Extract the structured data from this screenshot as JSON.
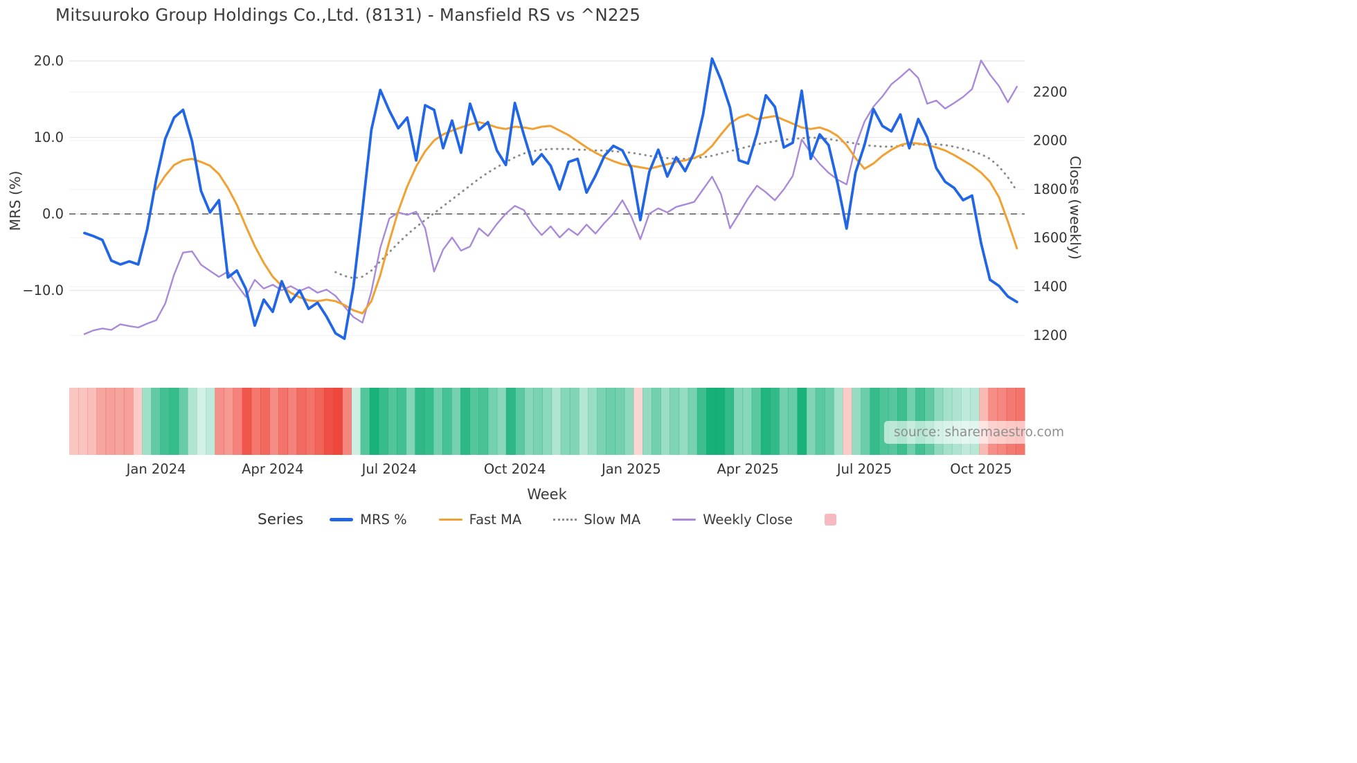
{
  "title": "Mitsuuroko Group Holdings Co.,Ltd. (8131) - Mansfield RS vs ^N225",
  "watermark": "source: sharemaestro.com",
  "legend": {
    "label": "Series",
    "items": [
      {
        "name": "MRS %",
        "color": "#2166e5",
        "style": "solid",
        "thickness": 4.5
      },
      {
        "name": "Fast MA",
        "color": "#f0a132",
        "style": "solid",
        "thickness": 3.2
      },
      {
        "name": "Slow MA",
        "color": "#8c8c8c",
        "style": "dotted",
        "thickness": 3.2
      },
      {
        "name": "Weekly Close",
        "color": "#a98ad8",
        "style": "solid",
        "thickness": 2.6
      },
      {
        "name": "",
        "color": "#f6b9bf",
        "style": "square",
        "thickness": 17
      }
    ]
  },
  "chart_data": {
    "type": "line",
    "title": "Mitsuuroko Group Holdings Co.,Ltd. (8131) - Mansfield RS vs ^N225",
    "grid": "horizontal-only",
    "legend_position": "bottom",
    "x": {
      "label": "Week",
      "tick_indices": [
        8,
        21,
        34,
        48,
        61,
        74,
        87,
        100
      ],
      "tick_labels": [
        "Jan 2024",
        "Apr 2024",
        "Jul 2024",
        "Oct 2024",
        "Jan 2025",
        "Apr 2025",
        "Jul 2025",
        "Oct 2025"
      ],
      "dates": [
        "2023-11-06",
        "2023-11-13",
        "2023-11-20",
        "2023-11-27",
        "2023-12-04",
        "2023-12-11",
        "2023-12-18",
        "2023-12-25",
        "2024-01-01",
        "2024-01-08",
        "2024-01-15",
        "2024-01-22",
        "2024-01-29",
        "2024-02-05",
        "2024-02-12",
        "2024-02-19",
        "2024-02-26",
        "2024-03-04",
        "2024-03-11",
        "2024-03-18",
        "2024-03-25",
        "2024-04-01",
        "2024-04-08",
        "2024-04-15",
        "2024-04-22",
        "2024-04-29",
        "2024-05-06",
        "2024-05-13",
        "2024-05-20",
        "2024-05-27",
        "2024-06-03",
        "2024-06-10",
        "2024-06-17",
        "2024-06-24",
        "2024-07-01",
        "2024-07-08",
        "2024-07-15",
        "2024-07-22",
        "2024-07-29",
        "2024-08-05",
        "2024-08-12",
        "2024-08-19",
        "2024-08-26",
        "2024-09-02",
        "2024-09-09",
        "2024-09-16",
        "2024-09-23",
        "2024-09-30",
        "2024-10-07",
        "2024-10-14",
        "2024-10-21",
        "2024-10-28",
        "2024-11-04",
        "2024-11-11",
        "2024-11-18",
        "2024-11-25",
        "2024-12-02",
        "2024-12-09",
        "2024-12-16",
        "2024-12-23",
        "2024-12-30",
        "2025-01-06",
        "2025-01-13",
        "2025-01-20",
        "2025-01-27",
        "2025-02-03",
        "2025-02-10",
        "2025-02-17",
        "2025-02-24",
        "2025-03-03",
        "2025-03-10",
        "2025-03-17",
        "2025-03-24",
        "2025-03-31",
        "2025-04-07",
        "2025-04-14",
        "2025-04-21",
        "2025-04-28",
        "2025-05-05",
        "2025-05-12",
        "2025-05-19",
        "2025-05-26",
        "2025-06-02",
        "2025-06-09",
        "2025-06-16",
        "2025-06-23",
        "2025-06-30",
        "2025-07-07",
        "2025-07-14",
        "2025-07-21",
        "2025-07-28",
        "2025-08-04",
        "2025-08-11",
        "2025-08-18",
        "2025-08-25",
        "2025-09-01",
        "2025-09-08",
        "2025-09-15",
        "2025-09-22",
        "2025-09-29",
        "2025-10-06",
        "2025-10-13",
        "2025-10-20",
        "2025-10-27",
        "2025-11-03"
      ]
    },
    "left_axis": {
      "label": "MRS (%)",
      "range": [
        -18.5,
        21.5
      ],
      "tick_values": [
        20,
        10,
        0,
        -10
      ],
      "tick_labels": [
        "20.0",
        "10.0",
        "0.0",
        "−10.0"
      ],
      "zero_line_dashed": true
    },
    "right_axis": {
      "label": "Close (weekly)",
      "range": [
        1150,
        2350
      ],
      "tick_values": [
        2200,
        2000,
        1800,
        1600,
        1400,
        1200
      ],
      "tick_labels": [
        "2200",
        "2000",
        "1800",
        "1600",
        "1400",
        "1200"
      ]
    },
    "series": [
      {
        "name": "MRS %",
        "axis": "left",
        "color": "#2166e5",
        "dash": "solid",
        "width": 3.8,
        "values": [
          -2.5,
          -2.9,
          -3.4,
          -6.1,
          -6.6,
          -6.2,
          -6.6,
          -2.0,
          4.5,
          9.8,
          12.6,
          13.6,
          9.5,
          3.0,
          0.2,
          1.8,
          -8.3,
          -7.4,
          -9.8,
          -14.6,
          -11.2,
          -12.8,
          -8.8,
          -11.5,
          -10.0,
          -12.4,
          -11.6,
          -13.4,
          -15.6,
          -16.3,
          -9.5,
          0.5,
          11.0,
          16.2,
          13.5,
          11.2,
          12.6,
          7.0,
          14.2,
          13.6,
          8.6,
          12.2,
          8.0,
          14.4,
          11.0,
          12.0,
          8.3,
          6.4,
          14.5,
          10.4,
          6.5,
          7.8,
          6.3,
          3.2,
          6.8,
          7.2,
          2.8,
          5.0,
          7.6,
          8.9,
          8.3,
          6.0,
          -0.8,
          5.5,
          8.4,
          4.9,
          7.4,
          5.6,
          8.0,
          13.0,
          20.3,
          17.5,
          13.9,
          7.0,
          6.6,
          10.5,
          15.5,
          14.0,
          8.7,
          9.3,
          16.1,
          7.2,
          10.4,
          9.0,
          4.0,
          -1.9,
          5.4,
          9.0,
          13.7,
          11.5,
          10.8,
          13.0,
          8.6,
          12.4,
          10.0,
          6.0,
          4.2,
          3.4,
          1.8,
          2.4,
          -3.8,
          -8.6,
          -9.4,
          -10.8,
          -11.5
        ]
      },
      {
        "name": "Fast MA",
        "axis": "left",
        "color": "#f0a132",
        "dash": "solid",
        "width": 3,
        "values": [
          null,
          null,
          null,
          null,
          null,
          null,
          null,
          null,
          3.2,
          5.0,
          6.4,
          7.0,
          7.2,
          6.8,
          6.3,
          5.2,
          3.4,
          1.2,
          -1.6,
          -4.2,
          -6.4,
          -8.2,
          -9.4,
          -10.3,
          -10.9,
          -11.3,
          -11.4,
          -11.2,
          -11.4,
          -11.9,
          -12.6,
          -13.0,
          -11.4,
          -8.0,
          -3.6,
          0.4,
          3.6,
          6.2,
          8.2,
          9.6,
          10.4,
          10.9,
          11.3,
          11.7,
          12.0,
          11.7,
          11.3,
          11.1,
          11.4,
          11.3,
          11.1,
          11.4,
          11.5,
          10.9,
          10.3,
          9.5,
          8.7,
          8.0,
          7.4,
          6.9,
          6.5,
          6.3,
          6.1,
          5.9,
          6.2,
          6.5,
          6.8,
          7.0,
          7.3,
          7.8,
          8.9,
          10.4,
          11.8,
          12.6,
          13.0,
          12.4,
          12.6,
          12.8,
          12.3,
          11.8,
          11.3,
          11.1,
          11.3,
          10.9,
          10.2,
          9.0,
          7.3,
          5.9,
          6.6,
          7.6,
          8.4,
          9.0,
          9.3,
          9.2,
          9.0,
          8.7,
          8.3,
          7.7,
          7.0,
          6.3,
          5.4,
          4.2,
          2.2,
          -1.0,
          -4.5
        ]
      },
      {
        "name": "Slow MA",
        "axis": "left",
        "color": "#8c8c8c",
        "dash": "dotted",
        "width": 3,
        "values": [
          null,
          null,
          null,
          null,
          null,
          null,
          null,
          null,
          null,
          null,
          null,
          null,
          null,
          null,
          null,
          null,
          null,
          null,
          null,
          null,
          null,
          null,
          null,
          null,
          null,
          null,
          null,
          null,
          -7.6,
          -8.1,
          -8.4,
          -8.2,
          -7.4,
          -6.2,
          -5.0,
          -3.8,
          -2.7,
          -1.7,
          -0.8,
          0.1,
          1.0,
          1.9,
          2.8,
          3.7,
          4.6,
          5.4,
          6.1,
          6.8,
          7.4,
          7.9,
          8.2,
          8.4,
          8.5,
          8.5,
          8.5,
          8.4,
          8.4,
          8.3,
          8.3,
          8.2,
          8.1,
          8.0,
          7.8,
          7.6,
          7.4,
          7.3,
          7.2,
          7.2,
          7.3,
          7.4,
          7.6,
          7.9,
          8.2,
          8.5,
          8.8,
          9.1,
          9.3,
          9.5,
          9.7,
          9.8,
          9.9,
          10.0,
          9.9,
          9.8,
          9.6,
          9.4,
          9.2,
          9.0,
          8.9,
          8.8,
          8.8,
          8.9,
          9.0,
          9.1,
          9.2,
          9.1,
          9.0,
          8.8,
          8.5,
          8.2,
          7.8,
          7.2,
          6.2,
          4.8,
          3.0
        ]
      },
      {
        "name": "Weekly Close",
        "axis": "right",
        "color": "#a98ad8",
        "dash": "solid",
        "width": 2.4,
        "values": [
          1205,
          1220,
          1228,
          1222,
          1245,
          1238,
          1232,
          1248,
          1262,
          1330,
          1450,
          1540,
          1545,
          1490,
          1465,
          1440,
          1462,
          1408,
          1358,
          1428,
          1392,
          1408,
          1385,
          1402,
          1382,
          1398,
          1375,
          1388,
          1362,
          1318,
          1275,
          1252,
          1380,
          1560,
          1680,
          1705,
          1695,
          1708,
          1640,
          1462,
          1552,
          1602,
          1548,
          1565,
          1640,
          1608,
          1658,
          1700,
          1732,
          1715,
          1655,
          1612,
          1648,
          1602,
          1638,
          1612,
          1655,
          1618,
          1662,
          1700,
          1755,
          1688,
          1595,
          1700,
          1722,
          1705,
          1728,
          1738,
          1748,
          1800,
          1852,
          1780,
          1640,
          1700,
          1762,
          1815,
          1788,
          1755,
          1800,
          1855,
          2005,
          1950,
          1905,
          1868,
          1840,
          1820,
          1978,
          2078,
          2140,
          2182,
          2232,
          2262,
          2295,
          2258,
          2152,
          2165,
          2132,
          2155,
          2180,
          2212,
          2330,
          2272,
          2225,
          2158,
          2222
        ]
      }
    ],
    "heatmap": {
      "derived_from": "MRS %",
      "rule": "green when MRS>=0, red when MRS<0, opacity scales with magnitude",
      "positive_color": "#0fae74",
      "negative_color": "#ed4135"
    }
  }
}
